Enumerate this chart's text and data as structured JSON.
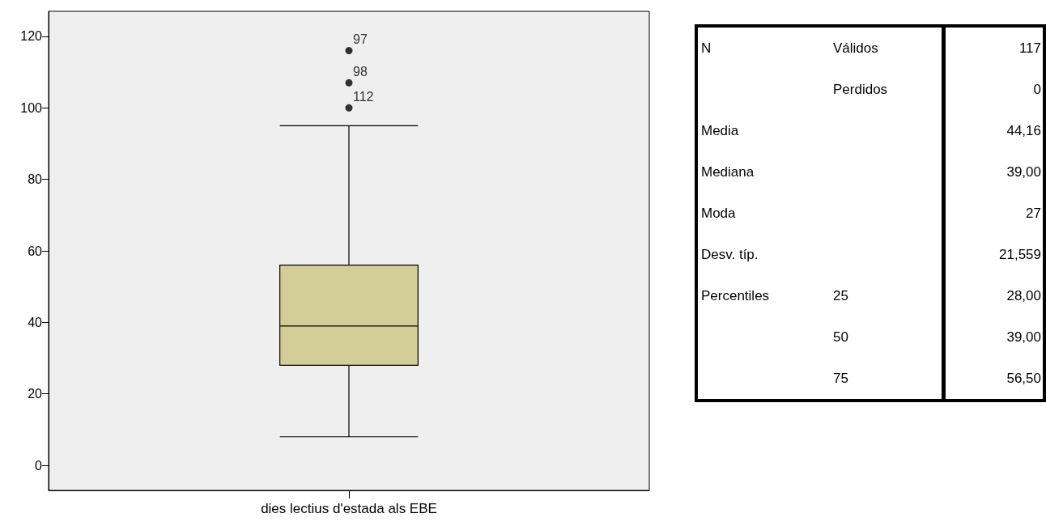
{
  "chart_data": [
    {
      "type": "box",
      "categories": [
        "dies lectius d'estada als EBE"
      ],
      "color": "#d3ce98",
      "boxes": [
        {
          "low": 8,
          "q1": 28,
          "median": 39,
          "q3": 56,
          "high": 95,
          "outliers": [
            116,
            107,
            100
          ]
        }
      ],
      "ylim": [
        -7,
        127
      ],
      "yticks": [
        0,
        20,
        40,
        60,
        80,
        100,
        120
      ],
      "grid": false,
      "marker": "circle",
      "annotations": [
        "97",
        "98",
        "112"
      ]
    },
    {
      "type": "other",
      "cell_labels": [
        [
          "N",
          "Válidos",
          "117"
        ],
        [
          null,
          "Perdidos",
          "0"
        ],
        [
          "Media",
          null,
          "44,16"
        ],
        [
          "Mediana",
          null,
          "39,00"
        ],
        [
          "Moda",
          null,
          "27"
        ],
        [
          "Desv. típ.",
          null,
          "21,559"
        ],
        [
          "Percentiles",
          "25",
          "28,00"
        ],
        [
          null,
          "50",
          "39,00"
        ],
        [
          null,
          "75",
          "56,50"
        ]
      ]
    }
  ]
}
